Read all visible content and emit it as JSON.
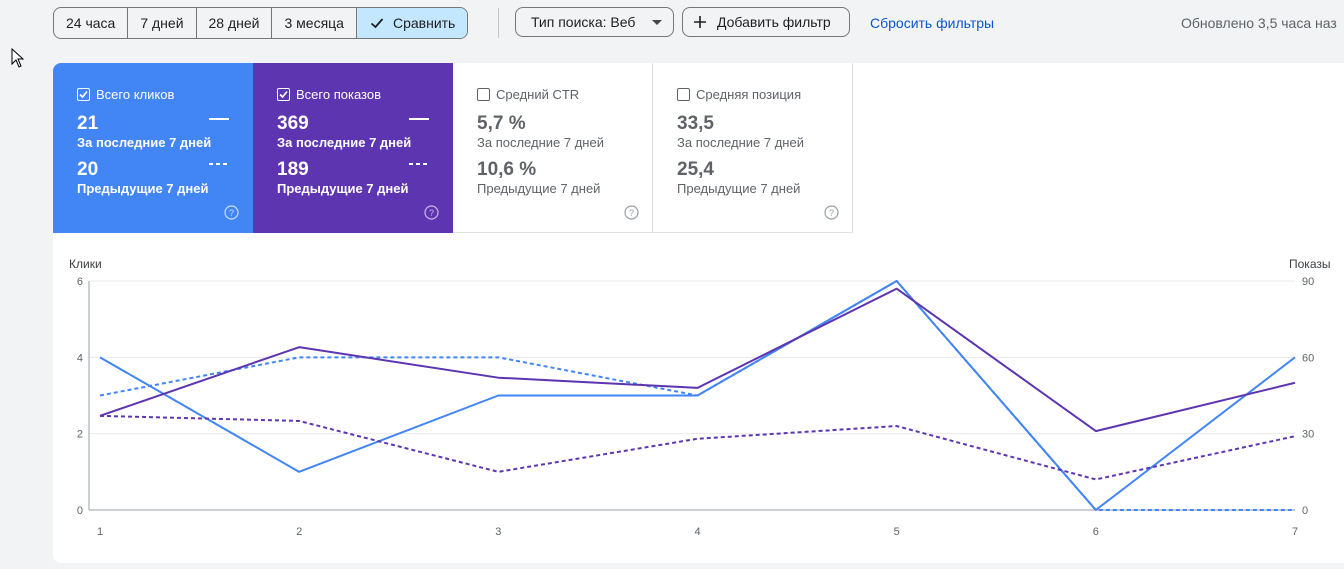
{
  "toolbar": {
    "ranges": [
      "24 часа",
      "7 дней",
      "28 дней",
      "3 месяца"
    ],
    "compare_label": "Сравнить",
    "search_type_label": "Тип поиска: Веб",
    "add_filter_label": "Добавить фильтр",
    "reset_filters_label": "Сбросить фильтры",
    "updated_text": "Обновлено 3,5 часа наз"
  },
  "metrics": [
    {
      "title": "Всего кликов",
      "checked": true,
      "current": "21",
      "current_label": "За последние 7 дней",
      "previous": "20",
      "previous_label": "Предыдущие 7 дней",
      "color": "#4285f4"
    },
    {
      "title": "Всего показов",
      "checked": true,
      "current": "369",
      "current_label": "За последние 7 дней",
      "previous": "189",
      "previous_label": "Предыдущие 7 дней",
      "color": "#5e35b1"
    },
    {
      "title": "Средний CTR",
      "checked": false,
      "current": "5,7 %",
      "current_label": "За последние 7 дней",
      "previous": "10,6 %",
      "previous_label": "Предыдущие 7 дней",
      "color": "#ffffff"
    },
    {
      "title": "Средняя позиция",
      "checked": false,
      "current": "33,5",
      "current_label": "За последние 7 дней",
      "previous": "25,4",
      "previous_label": "Предыдущие 7 дней",
      "color": "#ffffff"
    }
  ],
  "chart_data": {
    "type": "line",
    "x": [
      1,
      2,
      3,
      4,
      5,
      6,
      7
    ],
    "left_axis": {
      "title": "Клики",
      "ylim": [
        0,
        6
      ],
      "ticks": [
        0,
        2,
        4,
        6
      ]
    },
    "right_axis": {
      "title": "Показы",
      "ylim": [
        0,
        90
      ],
      "ticks": [
        0,
        30,
        60,
        90
      ]
    },
    "series": [
      {
        "axis": "left",
        "style": "solid",
        "color": "#4285f4",
        "values": [
          4,
          1,
          3,
          3,
          6,
          0,
          4
        ]
      },
      {
        "axis": "left",
        "style": "dashed",
        "color": "#4285f4",
        "values": [
          3,
          4,
          4,
          3,
          6,
          0,
          0
        ]
      },
      {
        "axis": "right",
        "style": "solid",
        "color": "#5e35b1",
        "values": [
          37,
          64,
          52,
          48,
          87,
          31,
          50
        ]
      },
      {
        "axis": "right",
        "style": "dashed",
        "color": "#5e35b1",
        "values": [
          37,
          35,
          15,
          28,
          33,
          12,
          29
        ]
      }
    ],
    "grid": true
  }
}
